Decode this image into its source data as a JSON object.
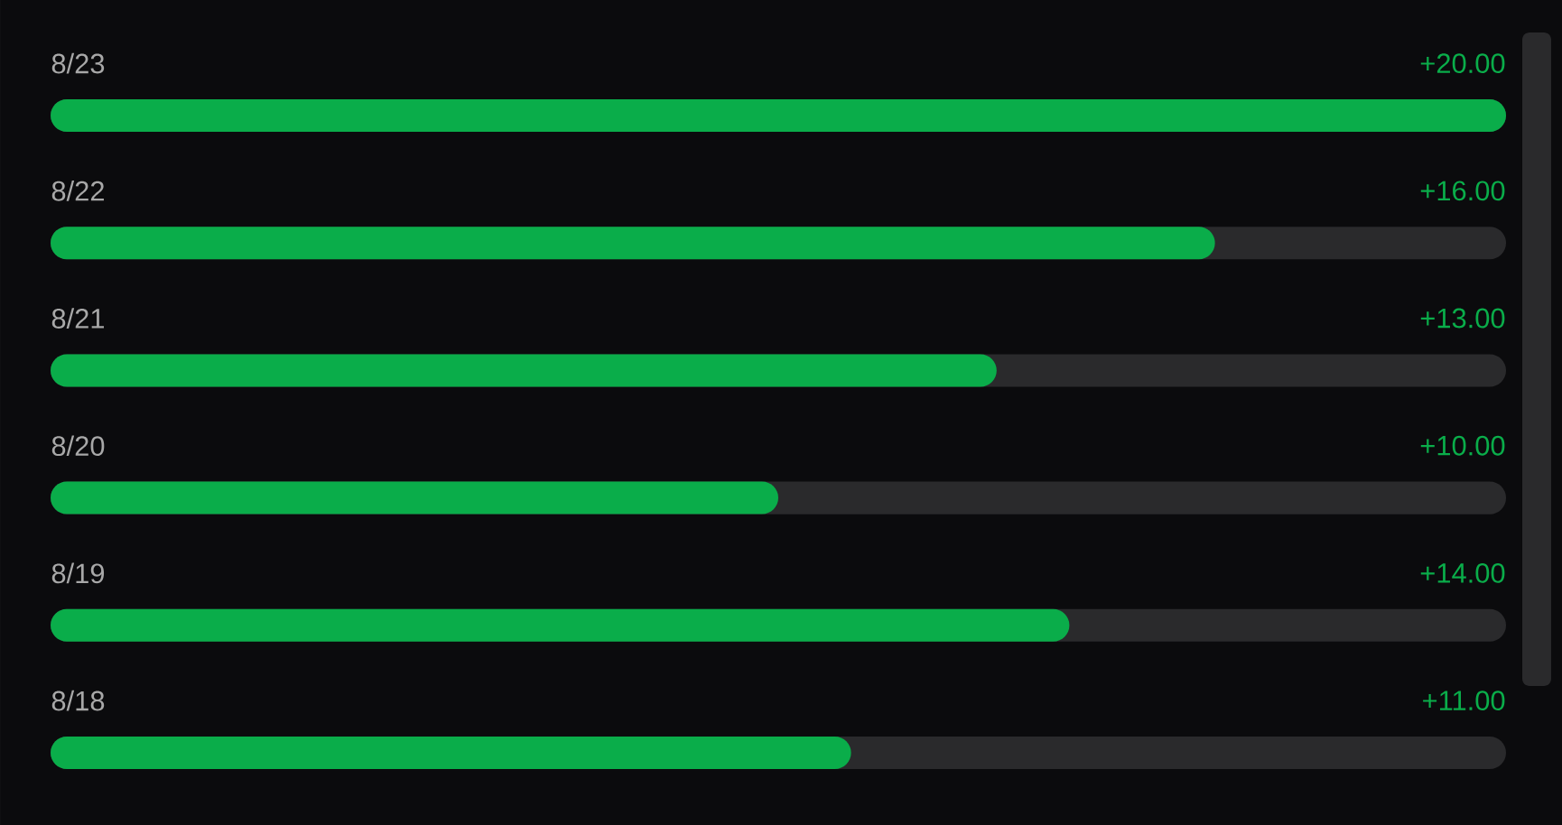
{
  "chart_data": {
    "type": "bar",
    "orientation": "horizontal",
    "categories": [
      "8/23",
      "8/22",
      "8/21",
      "8/20",
      "8/19",
      "8/18"
    ],
    "values": [
      20,
      16,
      13,
      10,
      14,
      11
    ],
    "value_labels": [
      "+20.00",
      "+16.00",
      "+13.00",
      "+10.00",
      "+14.00",
      "+11.00"
    ],
    "color": "#0aad4a"
  }
}
